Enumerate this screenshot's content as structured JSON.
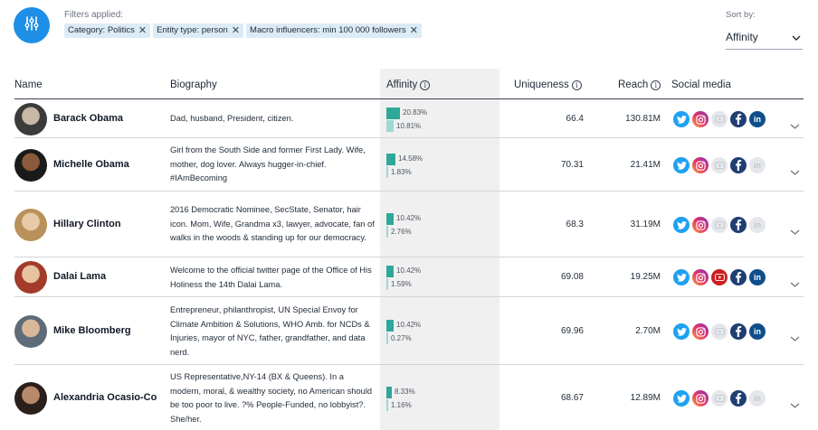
{
  "filters": {
    "label": "Filters applied:",
    "chips": [
      "Category: Politics",
      "Entity type: person",
      "Macro influencers: min 100 000 followers"
    ]
  },
  "sort": {
    "label": "Sort by:",
    "value": "Affinity"
  },
  "columns": {
    "name": "Name",
    "biography": "Biography",
    "affinity": "Affinity",
    "uniqueness": "Uniqueness",
    "reach": "Reach",
    "social": "Social media"
  },
  "colors": {
    "accent": "#1e8fe6",
    "affinity_primary": "#2fa89a",
    "affinity_secondary": "#9fd8d1",
    "twitter": "#1da1f2",
    "instagram": "#e1306c",
    "youtube": "#cc1f1f",
    "facebook": "#1f3f73",
    "linkedin": "#0e4f8a",
    "inactive": "#e5e7eb"
  },
  "rows": [
    {
      "name": "Barack Obama",
      "bio": "Dad, husband, President, citizen.",
      "affinity": "20.83%",
      "affinity_secondary": "10.81%",
      "affinity_value": 20.83,
      "affinity_secondary_value": 10.81,
      "uniqueness": "66.4",
      "reach": "130.81M",
      "social": {
        "twitter": true,
        "instagram": true,
        "youtube": false,
        "facebook": true,
        "linkedin": true
      }
    },
    {
      "name": "Michelle Obama",
      "bio": "Girl from the South Side and former First Lady. Wife, mother, dog lover. Always hugger-in-chief. #IAmBecoming",
      "affinity": "14.58%",
      "affinity_secondary": "1.83%",
      "affinity_value": 14.58,
      "affinity_secondary_value": 1.83,
      "uniqueness": "70.31",
      "reach": "21.41M",
      "social": {
        "twitter": true,
        "instagram": true,
        "youtube": false,
        "facebook": true,
        "linkedin": false
      }
    },
    {
      "name": "Hillary Clinton",
      "bio": "2016 Democratic Nominee, SecState, Senator, hair icon. Mom, Wife, Grandma x3, lawyer, advocate, fan of walks in the woods & standing up for our democracy.",
      "affinity": "10.42%",
      "affinity_secondary": "2.76%",
      "affinity_value": 10.42,
      "affinity_secondary_value": 2.76,
      "uniqueness": "68.3",
      "reach": "31.19M",
      "social": {
        "twitter": true,
        "instagram": true,
        "youtube": false,
        "facebook": true,
        "linkedin": false
      }
    },
    {
      "name": "Dalai Lama",
      "bio": "Welcome to the official twitter page of the Office of His Holiness the 14th Dalai Lama.",
      "affinity": "10.42%",
      "affinity_secondary": "1.59%",
      "affinity_value": 10.42,
      "affinity_secondary_value": 1.59,
      "uniqueness": "69.08",
      "reach": "19.25M",
      "social": {
        "twitter": true,
        "instagram": true,
        "youtube": true,
        "facebook": true,
        "linkedin": true
      }
    },
    {
      "name": "Mike Bloomberg",
      "bio": "Entrepreneur, philanthropist, UN Special Envoy for Climate Ambition & Solutions, WHO Amb. for NCDs & Injuries, mayor of NYC, father, grandfather, and data nerd.",
      "affinity": "10.42%",
      "affinity_secondary": "0.27%",
      "affinity_value": 10.42,
      "affinity_secondary_value": 0.27,
      "uniqueness": "69.96",
      "reach": "2.70M",
      "social": {
        "twitter": true,
        "instagram": true,
        "youtube": false,
        "facebook": true,
        "linkedin": true
      }
    },
    {
      "name": "Alexandria Ocasio-Co",
      "bio": "US Representative,NY-14 (BX & Queens). In a modern, moral, & wealthy society, no American should be too poor to live. ?% People-Funded, no lobbyist?. She/her.",
      "affinity": "8.33%",
      "affinity_secondary": "1.16%",
      "affinity_value": 8.33,
      "affinity_secondary_value": 1.16,
      "uniqueness": "68.67",
      "reach": "12.89M",
      "social": {
        "twitter": true,
        "instagram": true,
        "youtube": false,
        "facebook": true,
        "linkedin": false
      }
    }
  ]
}
